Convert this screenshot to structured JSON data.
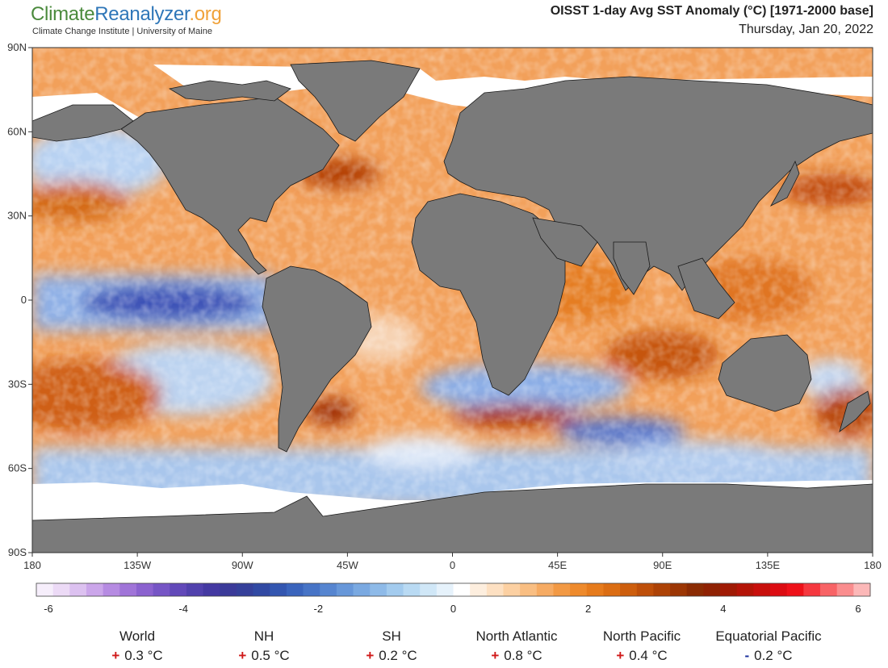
{
  "header": {
    "brand_part1": "Climate",
    "brand_part2": "Reanalyzer",
    "brand_part3": ".org",
    "subtitle": "Climate Change Institute | University of Maine",
    "title": "OISST 1-day Avg SST Anomaly (°C) [1971-2000 base]",
    "date": "Thursday, Jan 20, 2022"
  },
  "map": {
    "projection": "equirectangular",
    "y_ticks": [
      "90N",
      "60N",
      "30N",
      "0",
      "30S",
      "60S",
      "90S"
    ],
    "x_ticks": [
      "180",
      "135W",
      "90W",
      "45W",
      "0",
      "45E",
      "90E",
      "135E",
      "180"
    ],
    "land_color": "#7a7a7a",
    "ice_color": "#ffffff"
  },
  "colorbar": {
    "labels": [
      "-6",
      "-4",
      "-2",
      "0",
      "2",
      "4",
      "6"
    ],
    "min": -6,
    "max": 6,
    "colors": [
      "#f6eefb",
      "#ecdaf6",
      "#dcc1f0",
      "#cba6ea",
      "#b68be2",
      "#a074d8",
      "#8b62cf",
      "#7655c5",
      "#6249b9",
      "#5141ad",
      "#4439a2",
      "#3b3a99",
      "#35409a",
      "#3149a3",
      "#3356b0",
      "#3a64bc",
      "#4774c6",
      "#5685d0",
      "#6797d9",
      "#7aa9e1",
      "#8ebae8",
      "#a3cbee",
      "#b9daf3",
      "#d0e7f7",
      "#e6f2fb",
      "#ffffff",
      "#fdeede",
      "#fde0c2",
      "#fcd0a2",
      "#f9be82",
      "#f6ab63",
      "#f29944",
      "#ee8a2c",
      "#e67b1c",
      "#db6d13",
      "#cd5e0d",
      "#be4f09",
      "#ad4206",
      "#9c3604",
      "#8b2b03",
      "#8f2103",
      "#a01a04",
      "#b41407",
      "#c80f0c",
      "#dc0c12",
      "#ee1119",
      "#f5383f",
      "#f86366",
      "#fa8d8e",
      "#fcb8b8"
    ]
  },
  "stats": [
    {
      "name": "World",
      "sign": "+",
      "value": "0.3 °C"
    },
    {
      "name": "NH",
      "sign": "+",
      "value": "0.5 °C"
    },
    {
      "name": "SH",
      "sign": "+",
      "value": "0.2 °C"
    },
    {
      "name": "North Atlantic",
      "sign": "+",
      "value": "0.8 °C"
    },
    {
      "name": "North Pacific",
      "sign": "+",
      "value": "0.4 °C"
    },
    {
      "name": "Equatorial Pacific",
      "sign": "-",
      "value": "0.2 °C"
    }
  ]
}
